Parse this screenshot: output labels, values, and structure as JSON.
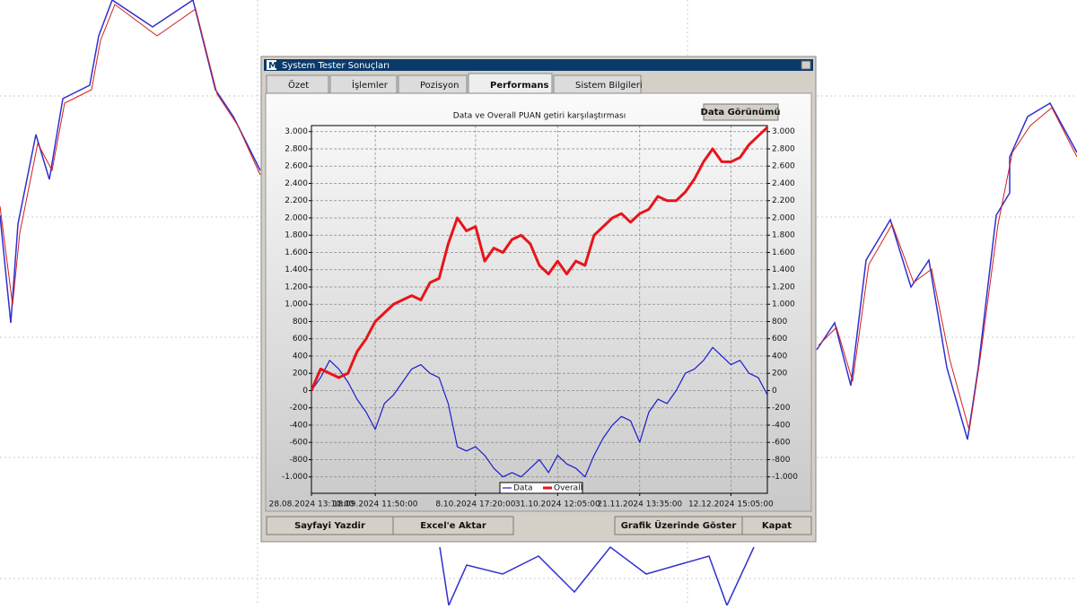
{
  "window": {
    "title": "System Tester Sonuçları",
    "tabs": [
      "Özet",
      "İşlemler",
      "Pozisyon",
      "Performans",
      "Sistem Bilgileri"
    ],
    "view_button": "Data Görünümü",
    "buttons": [
      "Sayfayi Yazdir",
      "Excel'e Aktar",
      "Grafik Üzerinde Göster",
      "Kapat"
    ]
  },
  "chart_data": {
    "type": "line",
    "title": "Data ve Overall PUAN getiri karşılaştırması",
    "categories": [
      "28.08.2024 13:10:00",
      null,
      null,
      null,
      null,
      null,
      null,
      "18.09.2024 11:50:00",
      null,
      null,
      null,
      null,
      null,
      null,
      null,
      null,
      null,
      null,
      "8.10.2024 17:20:00",
      null,
      null,
      null,
      null,
      null,
      null,
      null,
      null,
      "31.10.2024 12:05:00",
      null,
      null,
      null,
      null,
      null,
      null,
      null,
      null,
      "21.11.2024 13:35:00",
      null,
      null,
      null,
      null,
      null,
      null,
      null,
      null,
      null,
      "12.12.2024 15:05:00",
      null,
      null,
      null,
      null
    ],
    "series": [
      {
        "name": "Data",
        "color": "#1c1ccf",
        "values": [
          0,
          150,
          350,
          250,
          100,
          -100,
          -250,
          -450,
          -150,
          -50,
          100,
          250,
          300,
          200,
          150,
          -150,
          -650,
          -700,
          -650,
          -750,
          -900,
          -1000,
          -950,
          -1000,
          -900,
          -800,
          -950,
          -750,
          -850,
          -900,
          -1000,
          -750,
          -550,
          -400,
          -300,
          -350,
          -600,
          -250,
          -100,
          -150,
          0,
          200,
          250,
          350,
          500,
          400,
          300,
          350,
          200,
          150,
          -50
        ]
      },
      {
        "name": "Overall",
        "color": "#e8141a",
        "values": [
          0,
          250,
          200,
          150,
          200,
          450,
          600,
          800,
          900,
          1000,
          1050,
          1100,
          1050,
          1250,
          1300,
          1700,
          2000,
          1850,
          1900,
          1500,
          1650,
          1600,
          1750,
          1800,
          1700,
          1450,
          1350,
          1500,
          1350,
          1500,
          1450,
          1800,
          1900,
          2000,
          2050,
          1950,
          2050,
          2100,
          2250,
          2200,
          2200,
          2300,
          2450,
          2650,
          2800,
          2650,
          2650,
          2700,
          2850,
          2950,
          3050
        ]
      }
    ],
    "ylim": [
      -1190,
      3070
    ],
    "yticks": [
      {
        "value": -1000,
        "label": "-1.000"
      },
      -800,
      -600,
      -400,
      -200,
      0,
      200,
      400,
      600,
      800,
      {
        "value": 1000,
        "label": "1.000"
      },
      {
        "value": 1200,
        "label": "1.200"
      },
      {
        "value": 1400,
        "label": "1.400"
      },
      {
        "value": 1600,
        "label": "1.600"
      },
      {
        "value": 1800,
        "label": "1.800"
      },
      {
        "value": 2000,
        "label": "2.000"
      },
      {
        "value": 2200,
        "label": "2.200"
      },
      {
        "value": 2400,
        "label": "2.400"
      },
      {
        "value": 2600,
        "label": "2.600"
      },
      {
        "value": 2800,
        "label": "2.800"
      },
      {
        "value": 3000,
        "label": "3.000"
      }
    ],
    "y2lim": [
      -1190,
      3070
    ],
    "y2ticks": [
      {
        "value": -1000,
        "label": "-1.000"
      },
      -800,
      -600,
      -400,
      -200,
      0,
      200,
      400,
      600,
      800,
      {
        "value": 1000,
        "label": "1.000"
      },
      {
        "value": 1200,
        "label": "1.200"
      },
      {
        "value": 1400,
        "label": "1.400"
      },
      {
        "value": 1600,
        "label": "1.600"
      },
      {
        "value": 1800,
        "label": "1.800"
      },
      {
        "value": 2000,
        "label": "2.000"
      },
      {
        "value": 2200,
        "label": "2.200"
      },
      {
        "value": 2400,
        "label": "2.400"
      },
      {
        "value": 2600,
        "label": "2.600"
      },
      {
        "value": 2800,
        "label": "2.800"
      },
      {
        "value": 3000,
        "label": "3.000"
      }
    ],
    "grid": true,
    "legend": "bottom"
  }
}
